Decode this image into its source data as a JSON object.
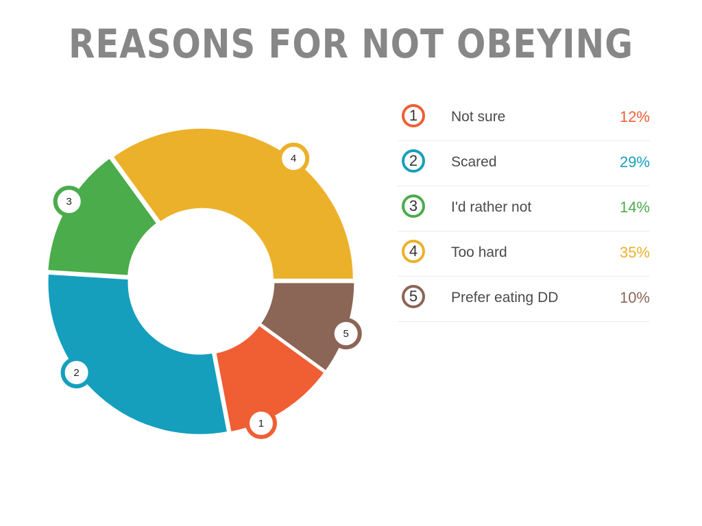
{
  "chart_data": {
    "type": "pie",
    "title": "REASONS FOR NOT OBEYING",
    "slices": [
      {
        "id": "1",
        "label": "Not sure",
        "value": 12,
        "percent_label": "12%",
        "color": "#F05E34"
      },
      {
        "id": "2",
        "label": "Scared",
        "value": 29,
        "percent_label": "29%",
        "color": "#159FBD"
      },
      {
        "id": "3",
        "label": "I'd rather not",
        "value": 14,
        "percent_label": "14%",
        "color": "#4AAC4B"
      },
      {
        "id": "4",
        "label": "Too hard",
        "value": 35,
        "percent_label": "35%",
        "color": "#ECB12A"
      },
      {
        "id": "5",
        "label": "Prefer eating DD",
        "value": 10,
        "percent_label": "10%",
        "color": "#8B6555"
      }
    ],
    "legend_position": "right"
  }
}
